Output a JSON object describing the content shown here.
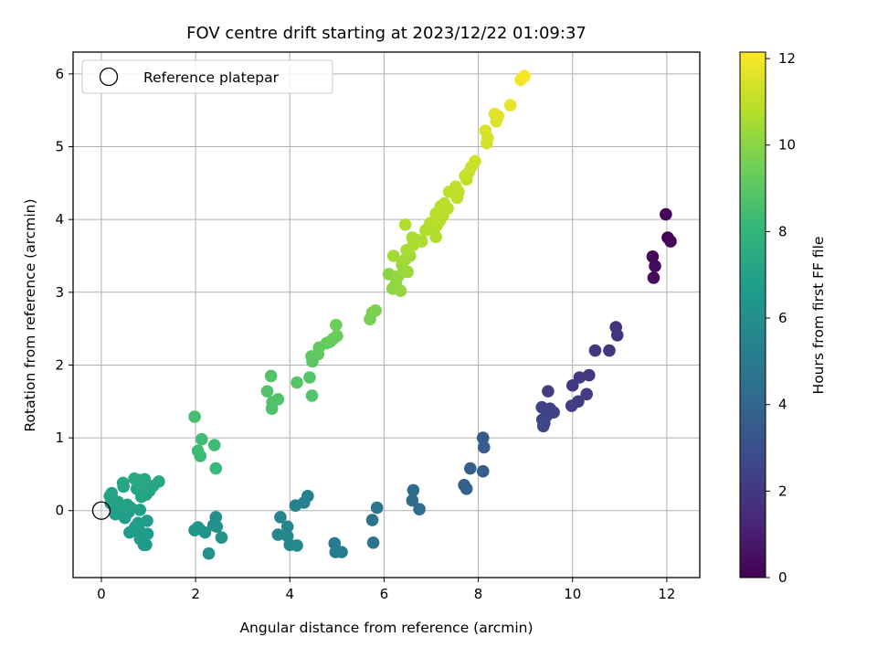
{
  "chart_data": {
    "type": "scatter",
    "title": "FOV centre drift starting at 2023/12/22 01:09:37",
    "xlabel": "Angular distance from reference (arcmin)",
    "ylabel": "Rotation from reference (arcmin)",
    "xlim": [
      -0.6,
      12.7
    ],
    "ylim": [
      -0.92,
      6.3
    ],
    "xticks": [
      0,
      2,
      4,
      6,
      8,
      10,
      12
    ],
    "yticks": [
      0,
      1,
      2,
      3,
      4,
      5,
      6
    ],
    "grid": true,
    "legend": {
      "position": "top-left",
      "entries": [
        "Reference platepar"
      ]
    },
    "reference_point": {
      "x": 0,
      "y": 0
    },
    "colorbar": {
      "label": "Hours from first FF file",
      "range": [
        0,
        12.15
      ],
      "ticks": [
        0,
        2,
        4,
        6,
        8,
        10,
        12
      ],
      "colormap": "viridis"
    },
    "points": [
      {
        "x": 11.98,
        "y": 4.07,
        "h": 0.1
      },
      {
        "x": 12.02,
        "y": 3.75,
        "h": 0.15
      },
      {
        "x": 12.08,
        "y": 3.7,
        "h": 0.2
      },
      {
        "x": 11.7,
        "y": 3.49,
        "h": 0.25
      },
      {
        "x": 11.75,
        "y": 3.36,
        "h": 0.3
      },
      {
        "x": 11.72,
        "y": 3.2,
        "h": 0.35
      },
      {
        "x": 10.92,
        "y": 2.52,
        "h": 1.8
      },
      {
        "x": 10.95,
        "y": 2.41,
        "h": 1.85
      },
      {
        "x": 10.78,
        "y": 2.2,
        "h": 1.9
      },
      {
        "x": 10.48,
        "y": 2.2,
        "h": 1.95
      },
      {
        "x": 10.35,
        "y": 1.86,
        "h": 2.0
      },
      {
        "x": 10.15,
        "y": 1.83,
        "h": 2.05
      },
      {
        "x": 10.0,
        "y": 1.72,
        "h": 2.1
      },
      {
        "x": 10.3,
        "y": 1.6,
        "h": 2.15
      },
      {
        "x": 10.12,
        "y": 1.5,
        "h": 2.2
      },
      {
        "x": 9.98,
        "y": 1.44,
        "h": 2.25
      },
      {
        "x": 9.48,
        "y": 1.64,
        "h": 2.3
      },
      {
        "x": 9.35,
        "y": 1.42,
        "h": 2.35
      },
      {
        "x": 9.52,
        "y": 1.4,
        "h": 2.4
      },
      {
        "x": 9.6,
        "y": 1.35,
        "h": 2.45
      },
      {
        "x": 9.45,
        "y": 1.3,
        "h": 2.5
      },
      {
        "x": 9.36,
        "y": 1.25,
        "h": 2.55
      },
      {
        "x": 9.4,
        "y": 1.2,
        "h": 2.6
      },
      {
        "x": 9.38,
        "y": 1.16,
        "h": 2.65
      },
      {
        "x": 8.1,
        "y": 1.0,
        "h": 3.5
      },
      {
        "x": 8.12,
        "y": 0.87,
        "h": 3.55
      },
      {
        "x": 7.83,
        "y": 0.58,
        "h": 3.6
      },
      {
        "x": 8.1,
        "y": 0.54,
        "h": 3.65
      },
      {
        "x": 7.7,
        "y": 0.35,
        "h": 3.7
      },
      {
        "x": 7.75,
        "y": 0.3,
        "h": 3.75
      },
      {
        "x": 6.62,
        "y": 0.28,
        "h": 4.2
      },
      {
        "x": 6.6,
        "y": 0.14,
        "h": 4.25
      },
      {
        "x": 6.75,
        "y": 0.02,
        "h": 4.3
      },
      {
        "x": 5.85,
        "y": 0.04,
        "h": 4.6
      },
      {
        "x": 5.75,
        "y": -0.13,
        "h": 4.65
      },
      {
        "x": 5.77,
        "y": -0.44,
        "h": 4.7
      },
      {
        "x": 4.95,
        "y": -0.45,
        "h": 5.0
      },
      {
        "x": 5.1,
        "y": -0.57,
        "h": 5.05
      },
      {
        "x": 4.97,
        "y": -0.57,
        "h": 5.1
      },
      {
        "x": 4.38,
        "y": 0.2,
        "h": 5.3
      },
      {
        "x": 4.3,
        "y": 0.11,
        "h": 5.35
      },
      {
        "x": 4.12,
        "y": 0.07,
        "h": 5.4
      },
      {
        "x": 3.8,
        "y": -0.09,
        "h": 5.5
      },
      {
        "x": 3.95,
        "y": -0.22,
        "h": 5.55
      },
      {
        "x": 3.75,
        "y": -0.33,
        "h": 5.6
      },
      {
        "x": 3.95,
        "y": -0.35,
        "h": 5.62
      },
      {
        "x": 4.0,
        "y": -0.47,
        "h": 5.65
      },
      {
        "x": 4.15,
        "y": -0.48,
        "h": 5.68
      },
      {
        "x": 2.43,
        "y": -0.09,
        "h": 6.0
      },
      {
        "x": 2.38,
        "y": -0.2,
        "h": 6.05
      },
      {
        "x": 2.45,
        "y": -0.22,
        "h": 6.1
      },
      {
        "x": 2.55,
        "y": -0.37,
        "h": 6.15
      },
      {
        "x": 2.28,
        "y": -0.59,
        "h": 6.2
      },
      {
        "x": 2.08,
        "y": -0.25,
        "h": 6.25
      },
      {
        "x": 2.2,
        "y": -0.3,
        "h": 6.3
      },
      {
        "x": 1.98,
        "y": -0.27,
        "h": 6.35
      },
      {
        "x": 2.05,
        "y": -0.23,
        "h": 6.4
      },
      {
        "x": 0.9,
        "y": -0.47,
        "h": 6.6
      },
      {
        "x": 0.95,
        "y": -0.47,
        "h": 6.62
      },
      {
        "x": 0.82,
        "y": -0.39,
        "h": 6.64
      },
      {
        "x": 0.98,
        "y": -0.32,
        "h": 6.66
      },
      {
        "x": 0.6,
        "y": -0.3,
        "h": 6.68
      },
      {
        "x": 0.8,
        "y": -0.27,
        "h": 6.7
      },
      {
        "x": 0.72,
        "y": -0.22,
        "h": 6.72
      },
      {
        "x": 0.78,
        "y": -0.17,
        "h": 6.74
      },
      {
        "x": 0.97,
        "y": -0.14,
        "h": 6.76
      },
      {
        "x": 0.5,
        "y": -0.1,
        "h": 6.78
      },
      {
        "x": 0.3,
        "y": -0.05,
        "h": 6.8
      },
      {
        "x": 0.45,
        "y": -0.03,
        "h": 6.82
      },
      {
        "x": 0.58,
        "y": -0.02,
        "h": 6.84
      },
      {
        "x": 0.82,
        "y": 0.01,
        "h": 6.86
      },
      {
        "x": 0.62,
        "y": 0.04,
        "h": 6.88
      },
      {
        "x": 0.28,
        "y": 0.05,
        "h": 6.9
      },
      {
        "x": 0.48,
        "y": 0.06,
        "h": 6.92
      },
      {
        "x": 0.55,
        "y": 0.08,
        "h": 6.94
      },
      {
        "x": 0.2,
        "y": 0.1,
        "h": 6.96
      },
      {
        "x": 0.35,
        "y": 0.12,
        "h": 6.98
      },
      {
        "x": 0.25,
        "y": 0.15,
        "h": 7.0
      },
      {
        "x": 0.18,
        "y": 0.2,
        "h": 7.02
      },
      {
        "x": 0.22,
        "y": 0.24,
        "h": 7.04
      },
      {
        "x": 0.85,
        "y": 0.19,
        "h": 7.06
      },
      {
        "x": 0.95,
        "y": 0.22,
        "h": 7.08
      },
      {
        "x": 1.02,
        "y": 0.27,
        "h": 7.1
      },
      {
        "x": 0.88,
        "y": 0.29,
        "h": 7.12
      },
      {
        "x": 0.75,
        "y": 0.3,
        "h": 7.14
      },
      {
        "x": 1.1,
        "y": 0.34,
        "h": 7.16
      },
      {
        "x": 0.47,
        "y": 0.33,
        "h": 7.18
      },
      {
        "x": 0.46,
        "y": 0.38,
        "h": 7.2
      },
      {
        "x": 0.8,
        "y": 0.42,
        "h": 7.22
      },
      {
        "x": 0.92,
        "y": 0.43,
        "h": 7.24
      },
      {
        "x": 1.22,
        "y": 0.4,
        "h": 7.26
      },
      {
        "x": 0.85,
        "y": 0.36,
        "h": 7.28
      },
      {
        "x": 0.7,
        "y": 0.44,
        "h": 7.3
      },
      {
        "x": 2.43,
        "y": 0.58,
        "h": 8.2
      },
      {
        "x": 2.1,
        "y": 0.75,
        "h": 8.25
      },
      {
        "x": 2.05,
        "y": 0.82,
        "h": 8.3
      },
      {
        "x": 2.4,
        "y": 0.9,
        "h": 8.35
      },
      {
        "x": 2.13,
        "y": 0.98,
        "h": 8.4
      },
      {
        "x": 1.98,
        "y": 1.29,
        "h": 8.45
      },
      {
        "x": 3.62,
        "y": 1.4,
        "h": 8.7
      },
      {
        "x": 3.63,
        "y": 1.49,
        "h": 8.72
      },
      {
        "x": 3.75,
        "y": 1.53,
        "h": 8.74
      },
      {
        "x": 3.52,
        "y": 1.64,
        "h": 8.76
      },
      {
        "x": 4.47,
        "y": 1.58,
        "h": 8.8
      },
      {
        "x": 3.6,
        "y": 1.85,
        "h": 8.82
      },
      {
        "x": 4.15,
        "y": 1.76,
        "h": 8.84
      },
      {
        "x": 4.42,
        "y": 1.83,
        "h": 8.86
      },
      {
        "x": 4.48,
        "y": 2.05,
        "h": 9.0
      },
      {
        "x": 4.46,
        "y": 2.12,
        "h": 9.05
      },
      {
        "x": 4.6,
        "y": 2.15,
        "h": 9.1
      },
      {
        "x": 4.62,
        "y": 2.24,
        "h": 9.15
      },
      {
        "x": 4.78,
        "y": 2.3,
        "h": 9.2
      },
      {
        "x": 4.85,
        "y": 2.32,
        "h": 9.25
      },
      {
        "x": 4.92,
        "y": 2.36,
        "h": 9.3
      },
      {
        "x": 5.0,
        "y": 2.4,
        "h": 9.35
      },
      {
        "x": 4.98,
        "y": 2.55,
        "h": 9.4
      },
      {
        "x": 5.7,
        "y": 2.63,
        "h": 9.6
      },
      {
        "x": 5.75,
        "y": 2.72,
        "h": 9.65
      },
      {
        "x": 5.82,
        "y": 2.75,
        "h": 9.7
      },
      {
        "x": 6.1,
        "y": 3.25,
        "h": 10.0
      },
      {
        "x": 6.18,
        "y": 3.05,
        "h": 10.05
      },
      {
        "x": 6.25,
        "y": 3.12,
        "h": 10.1
      },
      {
        "x": 6.35,
        "y": 3.02,
        "h": 10.15
      },
      {
        "x": 6.3,
        "y": 3.22,
        "h": 10.2
      },
      {
        "x": 6.42,
        "y": 3.3,
        "h": 10.25
      },
      {
        "x": 6.38,
        "y": 3.38,
        "h": 10.3
      },
      {
        "x": 6.5,
        "y": 3.28,
        "h": 10.35
      },
      {
        "x": 6.45,
        "y": 3.45,
        "h": 10.4
      },
      {
        "x": 6.2,
        "y": 3.5,
        "h": 10.45
      },
      {
        "x": 6.55,
        "y": 3.5,
        "h": 10.5
      },
      {
        "x": 6.48,
        "y": 3.58,
        "h": 10.55
      },
      {
        "x": 6.62,
        "y": 3.65,
        "h": 10.6
      },
      {
        "x": 6.7,
        "y": 3.72,
        "h": 10.62
      },
      {
        "x": 6.6,
        "y": 3.75,
        "h": 10.64
      },
      {
        "x": 6.8,
        "y": 3.7,
        "h": 10.66
      },
      {
        "x": 6.45,
        "y": 3.93,
        "h": 10.68
      },
      {
        "x": 6.88,
        "y": 3.85,
        "h": 10.7
      },
      {
        "x": 6.95,
        "y": 3.9,
        "h": 10.72
      },
      {
        "x": 7.05,
        "y": 3.85,
        "h": 10.74
      },
      {
        "x": 6.98,
        "y": 3.95,
        "h": 10.76
      },
      {
        "x": 7.1,
        "y": 3.76,
        "h": 10.78
      },
      {
        "x": 7.12,
        "y": 3.92,
        "h": 10.8
      },
      {
        "x": 7.18,
        "y": 3.98,
        "h": 10.82
      },
      {
        "x": 7.25,
        "y": 4.05,
        "h": 10.84
      },
      {
        "x": 7.1,
        "y": 4.08,
        "h": 10.86
      },
      {
        "x": 7.35,
        "y": 4.15,
        "h": 10.88
      },
      {
        "x": 7.2,
        "y": 4.18,
        "h": 10.9
      },
      {
        "x": 7.28,
        "y": 4.22,
        "h": 10.92
      },
      {
        "x": 7.38,
        "y": 4.38,
        "h": 10.94
      },
      {
        "x": 7.55,
        "y": 4.3,
        "h": 10.96
      },
      {
        "x": 7.58,
        "y": 4.38,
        "h": 10.98
      },
      {
        "x": 7.52,
        "y": 4.45,
        "h": 11.0
      },
      {
        "x": 7.75,
        "y": 4.55,
        "h": 11.05
      },
      {
        "x": 7.72,
        "y": 4.6,
        "h": 11.1
      },
      {
        "x": 7.8,
        "y": 4.65,
        "h": 11.15
      },
      {
        "x": 7.85,
        "y": 4.72,
        "h": 11.2
      },
      {
        "x": 7.93,
        "y": 4.8,
        "h": 11.25
      },
      {
        "x": 8.18,
        "y": 5.05,
        "h": 11.35
      },
      {
        "x": 8.2,
        "y": 5.12,
        "h": 11.4
      },
      {
        "x": 8.15,
        "y": 5.22,
        "h": 11.45
      },
      {
        "x": 8.38,
        "y": 5.35,
        "h": 11.55
      },
      {
        "x": 8.42,
        "y": 5.42,
        "h": 11.6
      },
      {
        "x": 8.35,
        "y": 5.45,
        "h": 11.65
      },
      {
        "x": 8.68,
        "y": 5.57,
        "h": 11.75
      },
      {
        "x": 8.9,
        "y": 5.92,
        "h": 11.95
      },
      {
        "x": 8.98,
        "y": 5.97,
        "h": 12.05
      }
    ]
  }
}
